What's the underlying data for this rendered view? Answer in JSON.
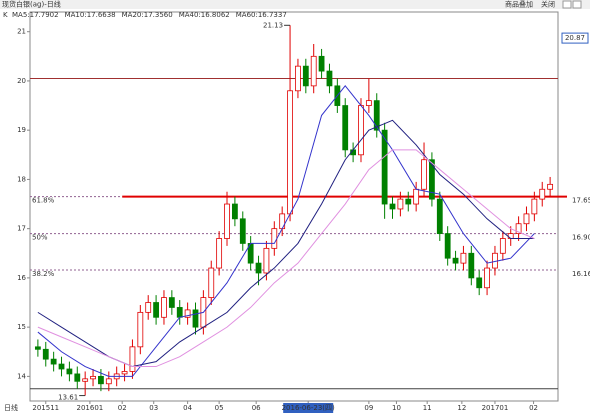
{
  "chart_data": {
    "type": "candlestick",
    "title": "现货白银(ag)-日线",
    "buttons": [
      "商品叠加",
      "关闭"
    ],
    "k_label": "K",
    "indicator_labels": [
      {
        "text": "MA5:17.7902",
        "color": "#333333"
      },
      {
        "text": "MA10:17.6638",
        "color": "#e08000"
      },
      {
        "text": "MA20:17.3560",
        "color": "#0000c0"
      },
      {
        "text": "MA40:16.8062",
        "color": "#202080"
      },
      {
        "text": "MA60:16.7337",
        "color": "#d070d0"
      }
    ],
    "period_label": "日线",
    "ylim": [
      13.5,
      21.4
    ],
    "yticks": [
      14,
      15,
      16,
      17,
      18,
      19,
      20,
      21
    ],
    "xlim": [
      -1,
      66
    ],
    "xticks": [
      {
        "value": 1,
        "label": "201511"
      },
      {
        "value": 6.6,
        "label": "201601"
      },
      {
        "value": 10.7,
        "label": "02"
      },
      {
        "value": 14.7,
        "label": "03"
      },
      {
        "value": 19,
        "label": "04"
      },
      {
        "value": 23,
        "label": "05"
      },
      {
        "value": 27.7,
        "label": "06"
      },
      {
        "value": 34.3,
        "label": "2016-06-23(四)"
      },
      {
        "value": 42,
        "label": "09"
      },
      {
        "value": 45.5,
        "label": "10"
      },
      {
        "value": 49.4,
        "label": "11"
      },
      {
        "value": 53.8,
        "label": "12"
      },
      {
        "value": 58,
        "label": "201701"
      },
      {
        "value": 62.9,
        "label": "02"
      }
    ],
    "up_color": "#e00000",
    "down_color": "#008000",
    "open": [
      14.6,
      14.55,
      14.35,
      14.25,
      14.15,
      14.05,
      13.9,
      13.95,
      14.0,
      13.85,
      13.95,
      14.05,
      14.1,
      14.6,
      15.3,
      15.5,
      15.2,
      15.6,
      15.4,
      15.2,
      15.35,
      15.0,
      15.6,
      16.2,
      16.8,
      17.5,
      17.2,
      16.7,
      16.3,
      16.1,
      16.6,
      17.0,
      17.3,
      19.8,
      20.3,
      19.9,
      20.5,
      20.2,
      19.9,
      19.5,
      18.6,
      18.5,
      19.5,
      19.6,
      19.0,
      17.5,
      17.4,
      17.6,
      17.5,
      17.8,
      18.4,
      17.6,
      16.9,
      16.4,
      16.3,
      16.5,
      16.0,
      15.8,
      16.2,
      16.5,
      16.8,
      16.9,
      17.1,
      17.3,
      17.6,
      17.8
    ],
    "high": [
      14.75,
      14.7,
      14.5,
      14.4,
      14.3,
      14.2,
      14.1,
      14.15,
      14.15,
      14.1,
      14.2,
      14.25,
      14.75,
      15.45,
      15.65,
      15.65,
      15.75,
      15.75,
      15.55,
      15.5,
      15.5,
      15.75,
      16.35,
      16.95,
      17.75,
      17.65,
      17.35,
      16.85,
      16.45,
      16.75,
      17.15,
      17.45,
      21.13,
      20.45,
      20.45,
      20.75,
      20.65,
      20.35,
      20.05,
      19.65,
      18.75,
      19.65,
      20.05,
      19.75,
      19.15,
      17.65,
      17.75,
      17.75,
      17.95,
      18.75,
      18.55,
      17.75,
      17.05,
      16.55,
      16.65,
      16.65,
      16.15,
      16.35,
      16.65,
      16.95,
      17.05,
      17.25,
      17.45,
      17.75,
      17.95,
      18.05
    ],
    "low": [
      14.4,
      14.2,
      14.1,
      14.0,
      13.9,
      13.75,
      13.61,
      13.8,
      13.7,
      13.7,
      13.8,
      13.9,
      13.95,
      14.45,
      15.15,
      15.05,
      15.05,
      15.25,
      15.05,
      15.05,
      14.85,
      14.85,
      15.45,
      16.05,
      16.65,
      17.05,
      16.55,
      16.15,
      15.85,
      15.95,
      16.45,
      16.85,
      17.15,
      19.65,
      19.75,
      19.75,
      20.05,
      19.75,
      19.35,
      18.45,
      18.35,
      18.35,
      19.35,
      18.85,
      17.2,
      17.2,
      17.25,
      17.35,
      17.35,
      17.65,
      17.45,
      16.75,
      16.25,
      16.15,
      16.15,
      15.85,
      15.65,
      15.65,
      16.05,
      16.35,
      16.65,
      16.75,
      16.95,
      17.15,
      17.45,
      17.65
    ],
    "close": [
      14.55,
      14.35,
      14.25,
      14.15,
      14.05,
      13.9,
      13.95,
      14.0,
      13.85,
      13.95,
      14.05,
      14.1,
      14.6,
      15.3,
      15.5,
      15.2,
      15.6,
      15.4,
      15.2,
      15.35,
      15.0,
      15.6,
      16.2,
      16.8,
      17.5,
      17.2,
      16.7,
      16.3,
      16.1,
      16.6,
      17.0,
      17.3,
      19.8,
      20.3,
      19.9,
      20.5,
      20.2,
      19.9,
      19.5,
      18.6,
      18.5,
      19.5,
      19.6,
      19.0,
      17.5,
      17.4,
      17.6,
      17.5,
      17.8,
      18.4,
      17.6,
      16.9,
      16.4,
      16.3,
      16.5,
      16.0,
      15.8,
      16.2,
      16.5,
      16.8,
      16.9,
      17.1,
      17.3,
      17.6,
      17.8,
      17.9
    ],
    "ma_x": [
      0,
      3,
      6,
      9,
      12,
      15,
      18,
      21,
      24,
      27,
      30,
      33,
      36,
      39,
      42,
      45,
      48,
      51,
      54,
      57,
      60,
      63
    ],
    "series": [
      {
        "name": "MA20",
        "color": "#3333cc",
        "values": [
          14.9,
          14.5,
          14.2,
          14.0,
          14.0,
          14.6,
          15.2,
          15.3,
          15.9,
          16.7,
          16.7,
          17.6,
          19.3,
          19.9,
          19.3,
          18.6,
          17.8,
          17.7,
          16.9,
          16.3,
          16.4,
          16.9
        ]
      },
      {
        "name": "MA40",
        "color": "#202080",
        "values": [
          15.3,
          15.0,
          14.7,
          14.4,
          14.2,
          14.3,
          14.7,
          15.0,
          15.3,
          15.8,
          16.2,
          16.7,
          17.5,
          18.4,
          19.0,
          19.2,
          18.7,
          18.1,
          17.7,
          17.2,
          16.8,
          16.8
        ]
      },
      {
        "name": "MA60",
        "color": "#e090e0",
        "values": [
          15.0,
          14.8,
          14.6,
          14.4,
          14.2,
          14.2,
          14.4,
          14.7,
          15.0,
          15.4,
          15.9,
          16.3,
          16.9,
          17.5,
          18.2,
          18.6,
          18.6,
          18.2,
          17.8,
          17.4,
          17.0,
          16.8
        ]
      }
    ],
    "levels": [
      {
        "value": 20.05,
        "color": "#a03030"
      },
      {
        "value": 13.75,
        "color": "#404040"
      }
    ],
    "fib_levels": [
      {
        "ratio": "61.8%",
        "value": 17.65,
        "label": "17.65"
      },
      {
        "ratio": "50%",
        "value": 16.9,
        "label": "16.90"
      },
      {
        "ratio": "38.2%",
        "value": 16.16,
        "label": "16.16"
      }
    ],
    "price_box": 20.87,
    "annotations": [
      {
        "value": 21.13,
        "x": 32
      },
      {
        "value": 13.61,
        "x": 6
      }
    ]
  }
}
